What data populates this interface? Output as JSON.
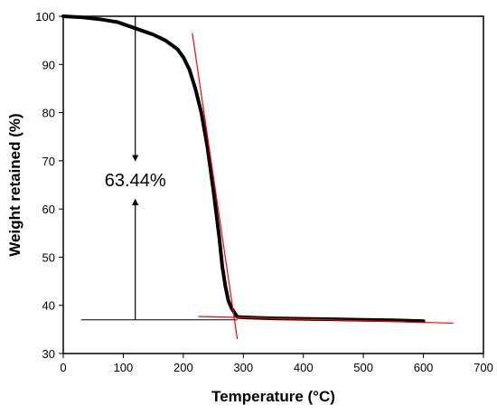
{
  "chart_data": {
    "type": "line",
    "title": "",
    "xlabel": "Temperature (°C)",
    "ylabel": "Weight retained (%)",
    "xlim": [
      0,
      700
    ],
    "ylim": [
      30,
      100
    ],
    "xticks": [
      0,
      100,
      200,
      300,
      400,
      500,
      600,
      700
    ],
    "yticks": [
      30,
      40,
      50,
      60,
      70,
      80,
      90,
      100
    ],
    "grid": false,
    "legend": "none",
    "series": [
      {
        "color": "#000000",
        "x": [
          0,
          30,
          60,
          90,
          120,
          150,
          170,
          190,
          200,
          210,
          220,
          230,
          240,
          250,
          260,
          265,
          270,
          275,
          280,
          285,
          290,
          300,
          350,
          400,
          450,
          500,
          550,
          600
        ],
        "y": [
          100,
          99.8,
          99.4,
          98.8,
          97.5,
          96.2,
          95,
          93.2,
          91.5,
          89,
          85,
          80,
          73,
          64,
          54,
          48,
          44,
          41,
          39.5,
          38.5,
          37.6,
          37.5,
          37.3,
          37.2,
          37.1,
          37,
          36.9,
          36.7
        ]
      }
    ],
    "tangents": [
      {
        "color": "#ff0000",
        "x": [
          215,
          290
        ],
        "y": [
          96.5,
          33
        ]
      },
      {
        "color": "#ff0000",
        "x": [
          225,
          650
        ],
        "y": [
          37.7,
          36.3
        ]
      }
    ],
    "baseline": {
      "color": "#000000",
      "x": [
        30,
        290
      ],
      "y": [
        37,
        37
      ]
    },
    "arrows": [
      {
        "color": "#000000",
        "x": 120,
        "from_y": 100,
        "to_y": 70
      },
      {
        "color": "#000000",
        "x": 120,
        "from_y": 37,
        "to_y": 62
      }
    ],
    "annotation": {
      "text": "63.44%",
      "x": 120,
      "y": 66
    }
  }
}
